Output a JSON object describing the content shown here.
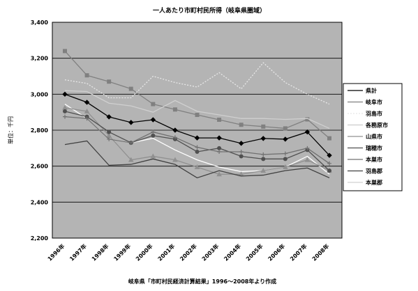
{
  "chart_data": {
    "type": "line",
    "title": "一人あたり市町村民所得（岐阜県圏域）",
    "y_label": "単位：千円",
    "x_label": "岐阜県「市町村民経済計算結果」1996〜2008年より作成",
    "categories": [
      "1996年",
      "1997年",
      "1998年",
      "1999年",
      "2000年",
      "2001年",
      "2002年",
      "2003年",
      "2004年",
      "2005年",
      "2006年",
      "2007年",
      "2008年"
    ],
    "ylim": [
      2200,
      3400
    ],
    "yticks": [
      {
        "value": 2200,
        "label": "2,200"
      },
      {
        "value": 2400,
        "label": "2,400"
      },
      {
        "value": 2600,
        "label": "2,600"
      },
      {
        "value": 2800,
        "label": "2,800"
      },
      {
        "value": 3000,
        "label": "3,000"
      },
      {
        "value": 3200,
        "label": "3,200"
      },
      {
        "value": 3400,
        "label": "3,400"
      }
    ],
    "grid": true,
    "series": [
      {
        "name": "県計",
        "color": "#000000",
        "marker": "diamond",
        "dash": "solid",
        "values": [
          3000,
          2955,
          2874,
          2843,
          2858,
          2800,
          2757,
          2757,
          2727,
          2754,
          2750,
          2790,
          2660
        ]
      },
      {
        "name": "岐阜市",
        "color": "#808080",
        "marker": "square",
        "dash": "solid",
        "values": [
          3240,
          3105,
          3070,
          3030,
          2945,
          2915,
          2885,
          2858,
          2830,
          2820,
          2810,
          2860,
          2755
        ]
      },
      {
        "name": "羽島市",
        "color": "#e8e8e8",
        "marker": "none",
        "dash": "dotted",
        "values": [
          3080,
          3060,
          2980,
          2980,
          3100,
          3065,
          3040,
          3120,
          3030,
          3175,
          3065,
          3000,
          2945
        ]
      },
      {
        "name": "各務原市",
        "color": "#ffffff",
        "marker": "none",
        "dash": "solid",
        "values": [
          2945,
          2865,
          2750,
          2730,
          2755,
          2690,
          2635,
          2595,
          2570,
          2575,
          2595,
          2655,
          2555
        ]
      },
      {
        "name": "山県市",
        "color": "#909090",
        "marker": "triangle",
        "dash": "solid",
        "values": [
          2925,
          2905,
          2770,
          2635,
          2655,
          2635,
          2595,
          2555,
          2555,
          2575,
          2595,
          2635,
          2575
        ]
      },
      {
        "name": "瑞穂市",
        "color": "#505050",
        "marker": "circle",
        "dash": "solid",
        "values": [
          2905,
          2875,
          2790,
          2730,
          2770,
          2750,
          2680,
          2700,
          2655,
          2640,
          2640,
          2690,
          2575
        ]
      },
      {
        "name": "本巣市",
        "color": "#707070",
        "marker": "plus",
        "dash": "solid",
        "values": [
          2875,
          2865,
          2750,
          2730,
          2790,
          2760,
          2705,
          2680,
          2680,
          2665,
          2670,
          2700,
          2615
        ]
      },
      {
        "name": "羽島郡",
        "color": "#404040",
        "marker": "none",
        "dash": "solid",
        "values": [
          2720,
          2740,
          2605,
          2610,
          2640,
          2610,
          2535,
          2575,
          2545,
          2550,
          2575,
          2590,
          2535
        ]
      },
      {
        "name": "本巣郡",
        "color": "#d0d0d0",
        "marker": "none",
        "dash": "solid",
        "values": [
          3020,
          3015,
          2950,
          2935,
          2900,
          2965,
          2905,
          2885,
          2865,
          2865,
          2860,
          2865,
          2810
        ]
      }
    ]
  }
}
